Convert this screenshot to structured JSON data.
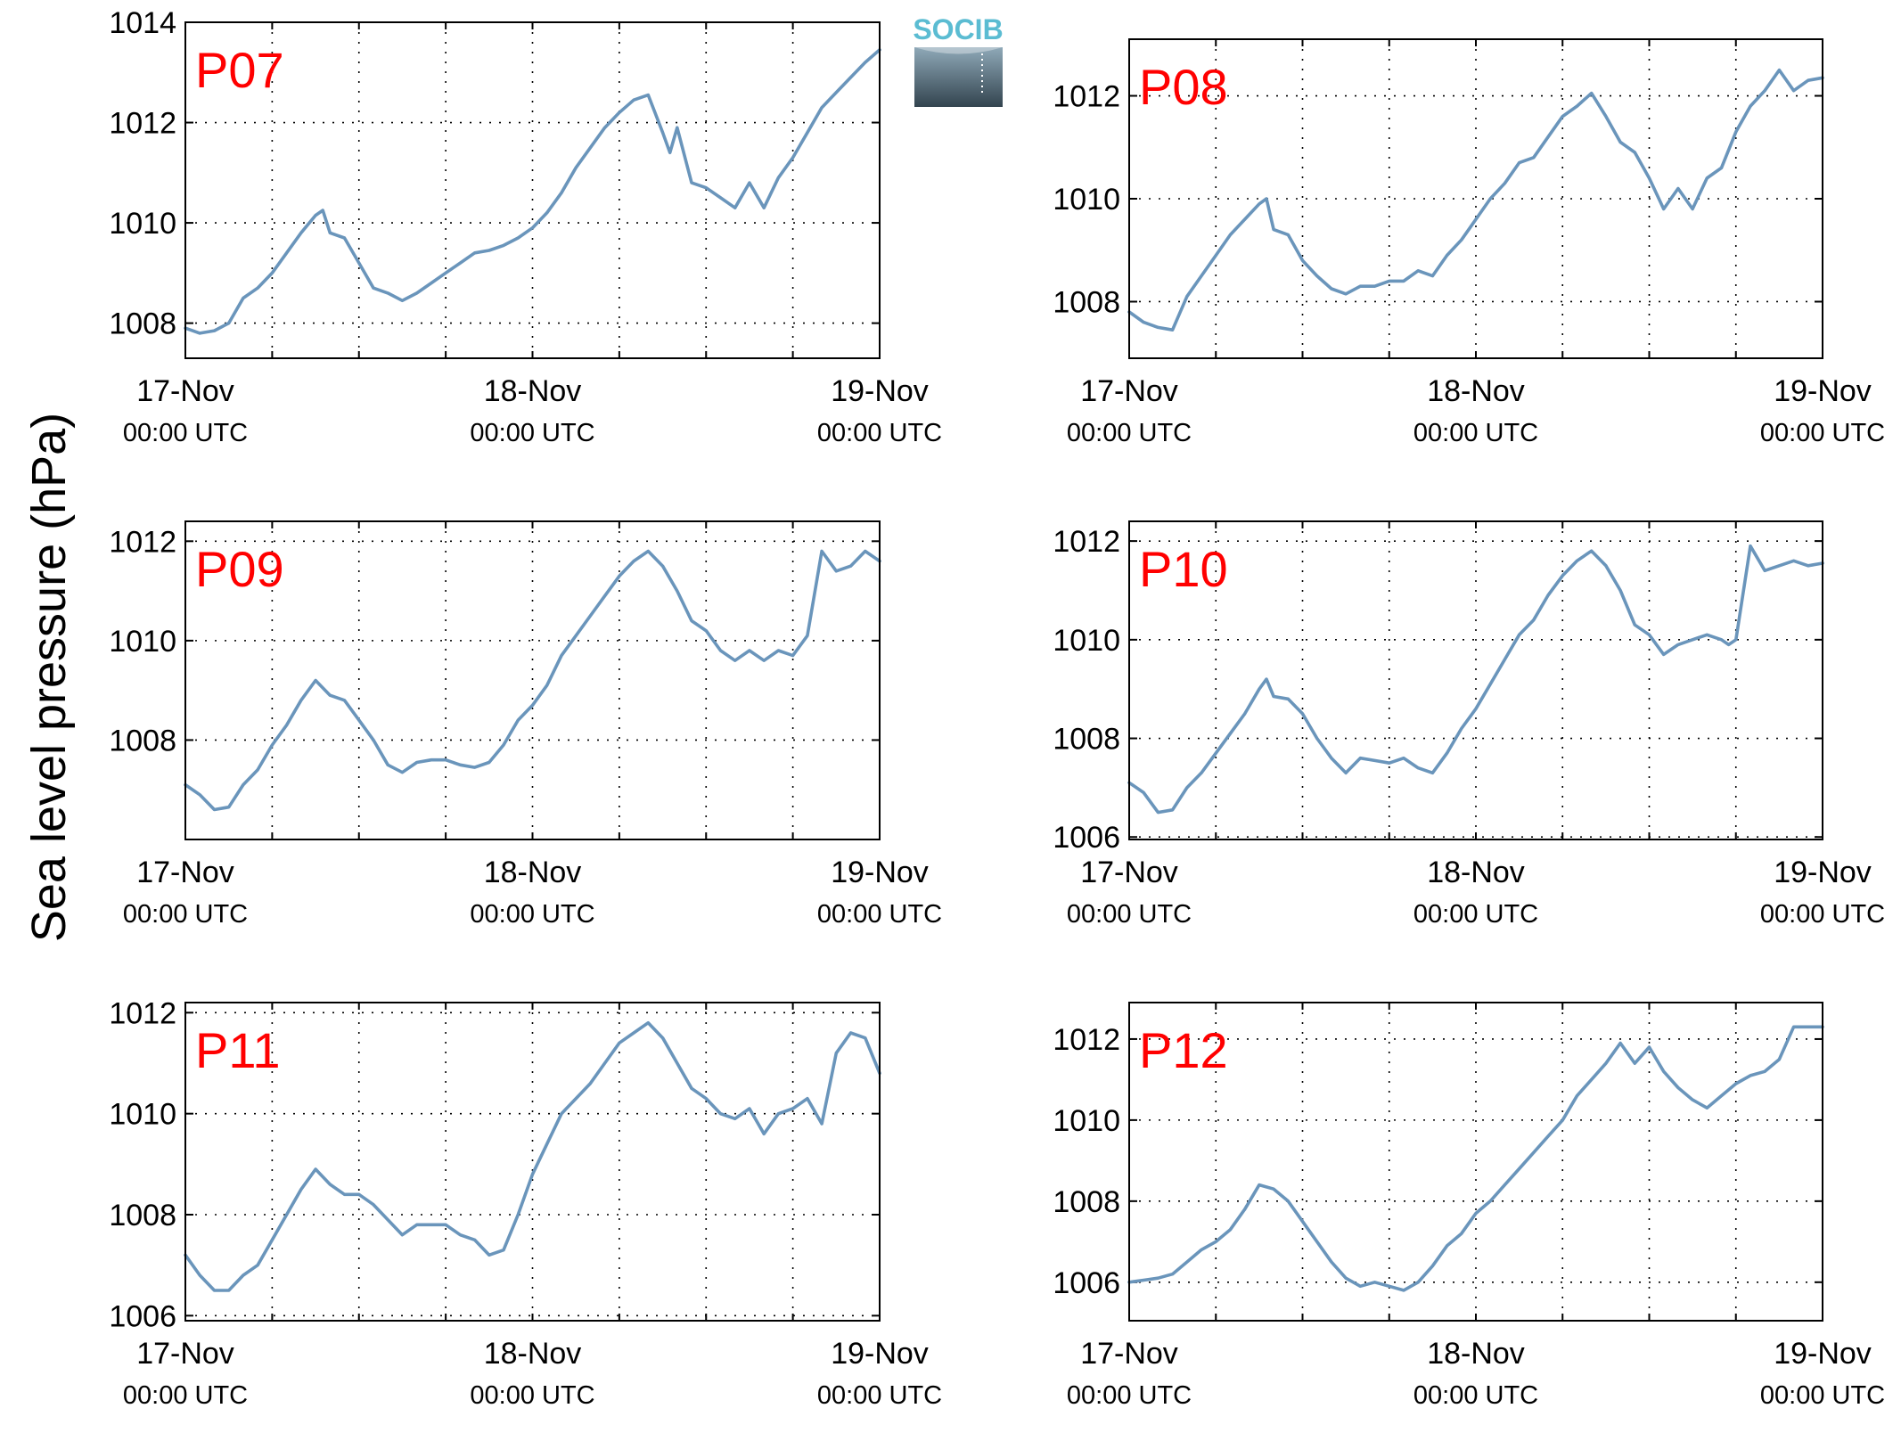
{
  "figure": {
    "ylabel": "Sea level pressure (hPa)",
    "logo_text": "SOCIB",
    "line_color": "#6a95bb",
    "title_color": "#ff0000"
  },
  "chart_data": [
    {
      "type": "line",
      "title": "P07",
      "x_tick_labels": [
        [
          "17-Nov",
          "00:00 UTC"
        ],
        [
          "18-Nov",
          "00:00 UTC"
        ],
        [
          "19-Nov",
          "00:00 UTC"
        ]
      ],
      "xlim": [
        0,
        48
      ],
      "ylim": [
        1007.3,
        1014
      ],
      "yticks": [
        1008,
        1010,
        1012,
        1014
      ],
      "grid": true,
      "series": [
        {
          "x": [
            0,
            1,
            2,
            3,
            4,
            5,
            6,
            7,
            8,
            9,
            9.5,
            10,
            11,
            12,
            13,
            14,
            15,
            16,
            17,
            18,
            19,
            20,
            21,
            22,
            23,
            24,
            25,
            26,
            27,
            28,
            29,
            30,
            31,
            32,
            33,
            33.5,
            34,
            35,
            36,
            37,
            38,
            39,
            40,
            41,
            42,
            43,
            44,
            45,
            46,
            47,
            48
          ],
          "y": [
            1007.9,
            1007.8,
            1007.85,
            1008,
            1008.5,
            1008.7,
            1009.0,
            1009.4,
            1009.8,
            1010.15,
            1010.25,
            1009.8,
            1009.7,
            1009.2,
            1008.7,
            1008.6,
            1008.45,
            1008.6,
            1008.8,
            1009.0,
            1009.2,
            1009.4,
            1009.45,
            1009.55,
            1009.7,
            1009.9,
            1010.2,
            1010.6,
            1011.1,
            1011.5,
            1011.9,
            1012.2,
            1012.45,
            1012.55,
            1011.8,
            1011.4,
            1011.9,
            1010.8,
            1010.7,
            1010.5,
            1010.3,
            1010.8,
            1010.3,
            1010.9,
            1011.3,
            1011.8,
            1012.3,
            1012.6,
            1012.9,
            1013.2,
            1013.45
          ]
        }
      ]
    },
    {
      "type": "line",
      "title": "P08",
      "x_tick_labels": [
        [
          "17-Nov",
          "00:00 UTC"
        ],
        [
          "18-Nov",
          "00:00 UTC"
        ],
        [
          "19-Nov",
          "00:00 UTC"
        ]
      ],
      "xlim": [
        0,
        48
      ],
      "ylim": [
        1006.9,
        1013.1
      ],
      "yticks": [
        1008,
        1010,
        1012
      ],
      "grid": true,
      "series": [
        {
          "x": [
            0,
            1,
            2,
            3,
            4,
            5,
            6,
            7,
            8,
            9,
            9.5,
            10,
            11,
            12,
            13,
            14,
            15,
            16,
            17,
            18,
            19,
            20,
            21,
            22,
            23,
            24,
            25,
            26,
            27,
            28,
            29,
            30,
            31,
            32,
            33,
            34,
            35,
            36,
            37,
            38,
            39,
            40,
            41,
            42,
            43,
            44,
            45,
            46,
            47,
            48
          ],
          "y": [
            1007.8,
            1007.6,
            1007.5,
            1007.45,
            1008.1,
            1008.5,
            1008.9,
            1009.3,
            1009.6,
            1009.9,
            1010.0,
            1009.4,
            1009.3,
            1008.8,
            1008.5,
            1008.25,
            1008.15,
            1008.3,
            1008.3,
            1008.4,
            1008.4,
            1008.6,
            1008.5,
            1008.9,
            1009.2,
            1009.6,
            1010.0,
            1010.3,
            1010.7,
            1010.8,
            1011.2,
            1011.6,
            1011.8,
            1012.05,
            1011.6,
            1011.1,
            1010.9,
            1010.4,
            1009.8,
            1010.2,
            1009.8,
            1010.4,
            1010.6,
            1011.3,
            1011.8,
            1012.1,
            1012.5,
            1012.1,
            1012.3,
            1012.35
          ]
        }
      ]
    },
    {
      "type": "line",
      "title": "P09",
      "x_tick_labels": [
        [
          "17-Nov",
          "00:00 UTC"
        ],
        [
          "18-Nov",
          "00:00 UTC"
        ],
        [
          "19-Nov",
          "00:00 UTC"
        ]
      ],
      "xlim": [
        0,
        48
      ],
      "ylim": [
        1006,
        1012.4
      ],
      "yticks": [
        1008,
        1010,
        1012
      ],
      "grid": true,
      "series": [
        {
          "x": [
            0,
            1,
            2,
            3,
            4,
            5,
            6,
            7,
            8,
            9,
            10,
            11,
            12,
            13,
            14,
            15,
            16,
            17,
            18,
            19,
            20,
            21,
            22,
            23,
            24,
            25,
            26,
            27,
            28,
            29,
            30,
            31,
            32,
            33,
            34,
            35,
            36,
            37,
            38,
            39,
            40,
            41,
            42,
            43,
            44,
            45,
            46,
            47,
            48
          ],
          "y": [
            1007.1,
            1006.9,
            1006.6,
            1006.65,
            1007.1,
            1007.4,
            1007.9,
            1008.3,
            1008.8,
            1009.2,
            1008.9,
            1008.8,
            1008.4,
            1008.0,
            1007.5,
            1007.35,
            1007.55,
            1007.6,
            1007.6,
            1007.5,
            1007.45,
            1007.55,
            1007.9,
            1008.4,
            1008.7,
            1009.1,
            1009.7,
            1010.1,
            1010.5,
            1010.9,
            1011.3,
            1011.6,
            1011.8,
            1011.5,
            1011.0,
            1010.4,
            1010.2,
            1009.8,
            1009.6,
            1009.8,
            1009.6,
            1009.8,
            1009.7,
            1010.1,
            1011.8,
            1011.4,
            1011.5,
            1011.8,
            1011.6
          ]
        }
      ]
    },
    {
      "type": "line",
      "title": "P10",
      "x_tick_labels": [
        [
          "17-Nov",
          "00:00 UTC"
        ],
        [
          "18-Nov",
          "00:00 UTC"
        ],
        [
          "19-Nov",
          "00:00 UTC"
        ]
      ],
      "xlim": [
        0,
        48
      ],
      "ylim": [
        1005.95,
        1012.4
      ],
      "yticks": [
        1006,
        1008,
        1010,
        1012
      ],
      "grid": true,
      "series": [
        {
          "x": [
            0,
            1,
            2,
            3,
            4,
            5,
            6,
            7,
            8,
            9,
            9.5,
            10,
            11,
            12,
            13,
            14,
            15,
            16,
            17,
            18,
            19,
            20,
            21,
            22,
            23,
            24,
            25,
            26,
            27,
            28,
            29,
            30,
            31,
            32,
            33,
            34,
            35,
            36,
            37,
            38,
            39,
            40,
            41,
            41.5,
            42,
            43,
            44,
            45,
            46,
            47,
            48
          ],
          "y": [
            1007.1,
            1006.9,
            1006.5,
            1006.55,
            1007.0,
            1007.3,
            1007.7,
            1008.1,
            1008.5,
            1009.0,
            1009.2,
            1008.85,
            1008.8,
            1008.5,
            1008.0,
            1007.6,
            1007.3,
            1007.6,
            1007.55,
            1007.5,
            1007.6,
            1007.4,
            1007.3,
            1007.7,
            1008.2,
            1008.6,
            1009.1,
            1009.6,
            1010.1,
            1010.4,
            1010.9,
            1011.3,
            1011.6,
            1011.8,
            1011.5,
            1011.0,
            1010.3,
            1010.1,
            1009.7,
            1009.9,
            1010.0,
            1010.1,
            1010.0,
            1009.9,
            1010.0,
            1011.9,
            1011.4,
            1011.5,
            1011.6,
            1011.5,
            1011.55
          ]
        }
      ]
    },
    {
      "type": "line",
      "title": "P11",
      "x_tick_labels": [
        [
          "17-Nov",
          "00:00 UTC"
        ],
        [
          "18-Nov",
          "00:00 UTC"
        ],
        [
          "19-Nov",
          "00:00 UTC"
        ]
      ],
      "xlim": [
        0,
        48
      ],
      "ylim": [
        1005.9,
        1012.2
      ],
      "yticks": [
        1006,
        1008,
        1010,
        1012
      ],
      "grid": true,
      "series": [
        {
          "x": [
            0,
            1,
            2,
            3,
            4,
            5,
            6,
            7,
            8,
            9,
            10,
            11,
            12,
            13,
            14,
            15,
            16,
            17,
            18,
            19,
            20,
            21,
            22,
            23,
            24,
            25,
            26,
            27,
            28,
            29,
            30,
            31,
            32,
            33,
            34,
            35,
            36,
            37,
            38,
            39,
            40,
            41,
            42,
            43,
            44,
            45,
            46,
            47,
            48
          ],
          "y": [
            1007.2,
            1006.8,
            1006.5,
            1006.5,
            1006.8,
            1007.0,
            1007.5,
            1008.0,
            1008.5,
            1008.9,
            1008.6,
            1008.4,
            1008.4,
            1008.2,
            1007.9,
            1007.6,
            1007.8,
            1007.8,
            1007.8,
            1007.6,
            1007.5,
            1007.2,
            1007.3,
            1008.0,
            1008.8,
            1009.4,
            1010.0,
            1010.3,
            1010.6,
            1011.0,
            1011.4,
            1011.6,
            1011.8,
            1011.5,
            1011.0,
            1010.5,
            1010.3,
            1010.0,
            1009.9,
            1010.1,
            1009.6,
            1010.0,
            1010.1,
            1010.3,
            1009.8,
            1011.2,
            1011.6,
            1011.5,
            1010.8
          ]
        }
      ]
    },
    {
      "type": "line",
      "title": "P12",
      "x_tick_labels": [
        [
          "17-Nov",
          "00:00 UTC"
        ],
        [
          "18-Nov",
          "00:00 UTC"
        ],
        [
          "19-Nov",
          "00:00 UTC"
        ]
      ],
      "xlim": [
        0,
        48
      ],
      "ylim": [
        1005.05,
        1012.9
      ],
      "yticks": [
        1006,
        1008,
        1010,
        1012
      ],
      "grid": true,
      "series": [
        {
          "x": [
            0,
            1,
            2,
            3,
            4,
            5,
            6,
            7,
            8,
            9,
            10,
            11,
            12,
            13,
            14,
            15,
            16,
            17,
            18,
            19,
            20,
            21,
            22,
            23,
            24,
            25,
            26,
            27,
            28,
            29,
            30,
            31,
            32,
            33,
            34,
            35,
            36,
            37,
            38,
            39,
            40,
            41,
            42,
            43,
            44,
            45,
            46,
            47,
            48
          ],
          "y": [
            1006.0,
            1006.05,
            1006.1,
            1006.2,
            1006.5,
            1006.8,
            1007.0,
            1007.3,
            1007.8,
            1008.4,
            1008.3,
            1008.0,
            1007.5,
            1007.0,
            1006.5,
            1006.1,
            1005.9,
            1006.0,
            1005.9,
            1005.8,
            1006.0,
            1006.4,
            1006.9,
            1007.2,
            1007.7,
            1008.0,
            1008.4,
            1008.8,
            1009.2,
            1009.6,
            1010.0,
            1010.6,
            1011.0,
            1011.4,
            1011.9,
            1011.4,
            1011.8,
            1011.2,
            1010.8,
            1010.5,
            1010.3,
            1010.6,
            1010.9,
            1011.1,
            1011.2,
            1011.5,
            1012.3,
            1012.3,
            1012.3
          ]
        }
      ]
    }
  ]
}
